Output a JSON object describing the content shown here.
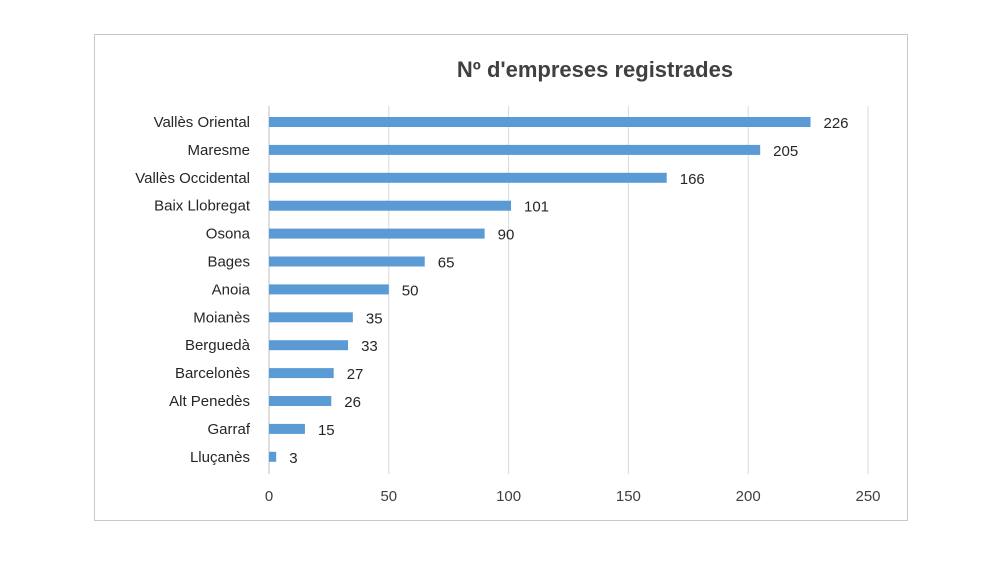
{
  "chart_data": {
    "type": "bar",
    "orientation": "horizontal",
    "title": "Nº d'empreses registrades",
    "categories": [
      "Vallès Oriental",
      "Maresme",
      "Vallès Occidental",
      "Baix Llobregat",
      "Osona",
      "Bages",
      "Anoia",
      "Moianès",
      "Berguedà",
      "Barcelonès",
      "Alt Penedès",
      "Garraf",
      "Lluçanès"
    ],
    "values": [
      226,
      205,
      166,
      101,
      90,
      65,
      50,
      35,
      33,
      27,
      26,
      15,
      3
    ],
    "xlim": [
      0,
      250
    ],
    "xticks": [
      0,
      50,
      100,
      150,
      200,
      250
    ],
    "xlabel": "",
    "ylabel": "",
    "grid": "vertical",
    "legend": "none",
    "bar_color": "#5b9bd5",
    "data_labels": true
  }
}
